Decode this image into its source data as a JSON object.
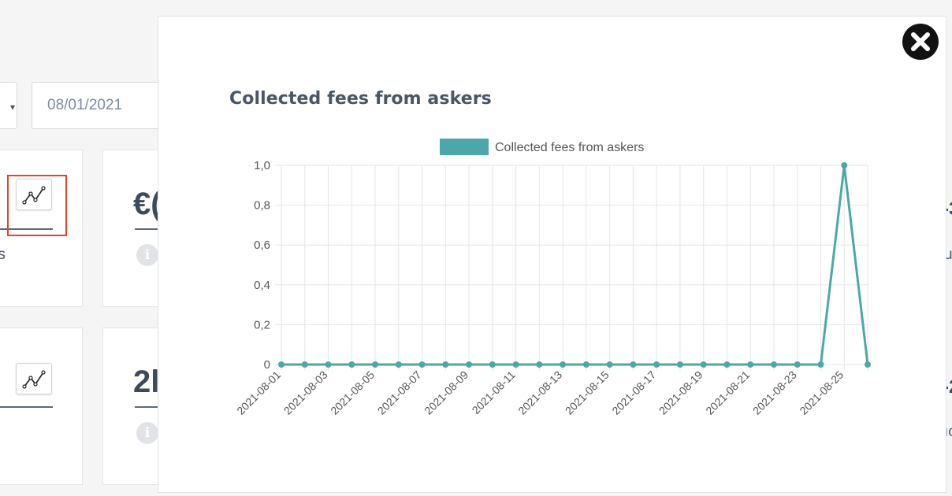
{
  "filters": {
    "date_from": "08/01/2021"
  },
  "background_cards": {
    "card1": {
      "label_fragment": "rs"
    },
    "card2": {
      "value_fragment": "€("
    },
    "card4": {
      "value_fragment": "2l"
    },
    "right_fragments": [
      "-3",
      "u",
      "-2",
      "ıc"
    ]
  },
  "modal": {
    "title": "Collected fees from askers",
    "close_icon": "close-icon"
  },
  "colors": {
    "series": "#4aa9a8",
    "highlight": "#e0442c"
  },
  "chart_data": {
    "type": "line",
    "title": "Collected fees from askers",
    "legend": {
      "position": "top",
      "entries": [
        "Collected fees from askers"
      ]
    },
    "x": [
      "2021-08-01",
      "2021-08-02",
      "2021-08-03",
      "2021-08-04",
      "2021-08-05",
      "2021-08-06",
      "2021-08-07",
      "2021-08-08",
      "2021-08-09",
      "2021-08-10",
      "2021-08-11",
      "2021-08-12",
      "2021-08-13",
      "2021-08-14",
      "2021-08-15",
      "2021-08-16",
      "2021-08-17",
      "2021-08-18",
      "2021-08-19",
      "2021-08-20",
      "2021-08-21",
      "2021-08-22",
      "2021-08-23",
      "2021-08-24",
      "2021-08-25",
      "2021-08-26"
    ],
    "x_tick_labels": [
      "2021-08-01",
      "2021-08-03",
      "2021-08-05",
      "2021-08-07",
      "2021-08-09",
      "2021-08-11",
      "2021-08-13",
      "2021-08-15",
      "2021-08-17",
      "2021-08-19",
      "2021-08-21",
      "2021-08-23",
      "2021-08-25"
    ],
    "series": [
      {
        "name": "Collected fees from askers",
        "values": [
          0,
          0,
          0,
          0,
          0,
          0,
          0,
          0,
          0,
          0,
          0,
          0,
          0,
          0,
          0,
          0,
          0,
          0,
          0,
          0,
          0,
          0,
          0,
          0,
          1,
          0
        ]
      }
    ],
    "ylim": [
      0,
      1
    ],
    "y_ticks": [
      0,
      0.2,
      0.4,
      0.6,
      0.8,
      1.0
    ],
    "y_tick_labels": [
      "0",
      "0,2",
      "0,4",
      "0,6",
      "0,8",
      "1,0"
    ],
    "grid": true
  }
}
